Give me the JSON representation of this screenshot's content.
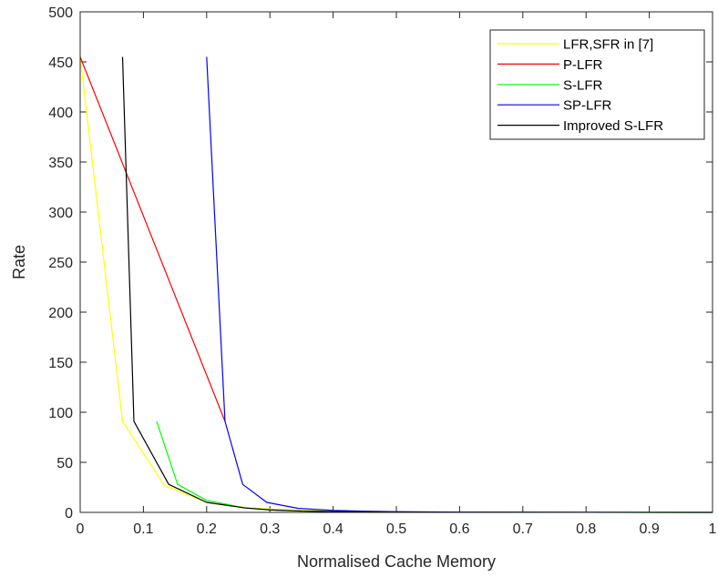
{
  "chart_data": {
    "type": "line",
    "title": "",
    "xlabel": "Normalised Cache Memory",
    "ylabel": "Rate",
    "xlim": [
      0,
      1
    ],
    "ylim": [
      0,
      500
    ],
    "x_ticks": [
      0,
      0.1,
      0.2,
      0.3,
      0.4,
      0.5,
      0.6,
      0.7,
      0.8,
      0.9,
      1
    ],
    "x_tick_labels": [
      "0",
      "0.1",
      "0.2",
      "0.3",
      "0.4",
      "0.5",
      "0.6",
      "0.7",
      "0.8",
      "0.9",
      "1"
    ],
    "y_ticks": [
      0,
      50,
      100,
      150,
      200,
      250,
      300,
      350,
      400,
      450,
      500
    ],
    "y_tick_labels": [
      "0",
      "50",
      "100",
      "150",
      "200",
      "250",
      "300",
      "350",
      "400",
      "450",
      "500"
    ],
    "grid": false,
    "legend_position": "top-right",
    "series": [
      {
        "name": "LFR,SFR in [7]",
        "color": "#ffff00",
        "x": [
          0,
          0.067,
          0.133,
          0.2,
          0.267,
          0.333,
          0.4,
          0.467,
          0.533,
          0.6,
          0.667,
          0.733,
          0.8,
          0.867,
          0.933,
          1
        ],
        "y": [
          455,
          91,
          27,
          10,
          4.5,
          2.3,
          1.3,
          0.8,
          0.5,
          0.3,
          0.2,
          0.12,
          0.07,
          0.04,
          0.02,
          0
        ]
      },
      {
        "name": "P-LFR",
        "color": "#ff0000",
        "x": [
          0,
          0.229
        ],
        "y": [
          455,
          91
        ]
      },
      {
        "name": "S-LFR",
        "color": "#00ff00",
        "x": [
          0.121,
          0.154,
          0.2,
          0.26,
          0.3,
          0.35,
          0.4,
          0.5,
          0.6,
          0.7,
          0.8,
          0.9,
          1
        ],
        "y": [
          91,
          28,
          12,
          4.5,
          2.5,
          1.3,
          0.8,
          0.3,
          0.15,
          0.08,
          0.04,
          0.02,
          0
        ]
      },
      {
        "name": "SP-LFR",
        "color": "#0000ff",
        "x": [
          0.2,
          0.229,
          0.257,
          0.295,
          0.345,
          0.4,
          0.45,
          0.5,
          0.6,
          0.7,
          0.8,
          0.9,
          1
        ],
        "y": [
          455,
          91,
          28,
          10,
          4,
          2,
          1.2,
          0.7,
          0.3,
          0.15,
          0.08,
          0.04,
          0
        ]
      },
      {
        "name": "Improved S-LFR",
        "color": "#000000",
        "x": [
          0.067,
          0.085,
          0.14,
          0.2,
          0.26,
          0.3,
          0.35,
          0.4,
          0.5,
          0.6,
          0.7,
          0.8,
          0.9,
          1
        ],
        "y": [
          455,
          91,
          28,
          10,
          4.5,
          2.5,
          1.3,
          0.8,
          0.3,
          0.15,
          0.08,
          0.04,
          0.02,
          0
        ]
      }
    ]
  }
}
